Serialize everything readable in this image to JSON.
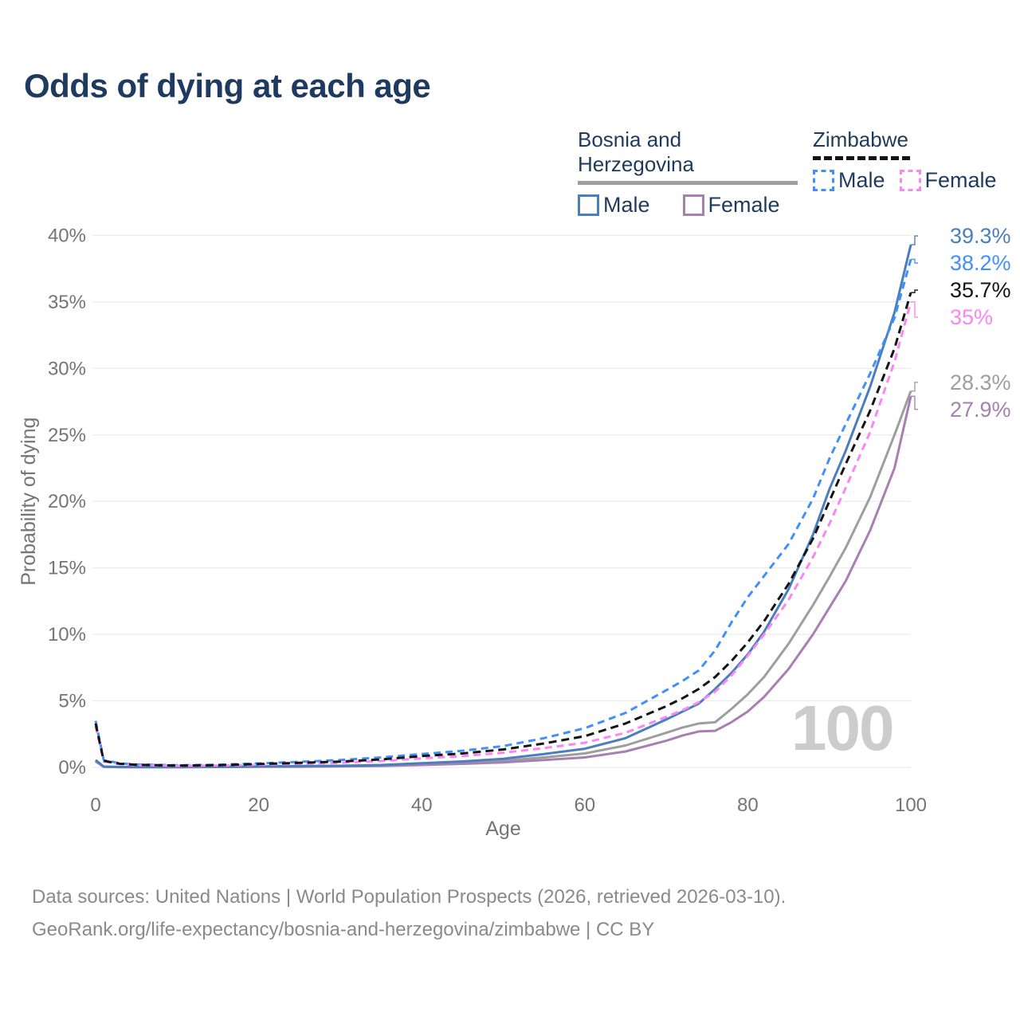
{
  "title": "Odds of dying at each age",
  "legend": {
    "groups": [
      {
        "country": "Bosnia and Herzegovina",
        "underline_style": "solid",
        "underline_color": "#9e9e9e",
        "items": [
          {
            "label": "Male",
            "color": "#4a7ebd",
            "dashed": false
          },
          {
            "label": "Female",
            "color": "#a77fb0",
            "dashed": false
          }
        ]
      },
      {
        "country": "Zimbabwe",
        "underline_style": "dashed",
        "underline_color": "#141414",
        "items": [
          {
            "label": "Male",
            "color": "#4190fa",
            "dashed": true
          },
          {
            "label": "Female",
            "color": "#fb86f2",
            "dashed": true
          }
        ]
      }
    ]
  },
  "watermark": "100",
  "footer": {
    "line1": "Data sources: United Nations | World Population Prospects (2026, retrieved 2026-03-10).",
    "line2": "GeoRank.org/life-expectancy/bosnia-and-herzegovina/zimbabwe | CC BY"
  },
  "chart_data": {
    "type": "line",
    "title": "Odds of dying at each age",
    "xlabel": "Age",
    "ylabel": "Probability of dying",
    "xlim": [
      0,
      100
    ],
    "ylim": [
      0,
      40
    ],
    "x_ticks": [
      0,
      20,
      40,
      60,
      80,
      100
    ],
    "y_ticks": [
      0,
      5,
      10,
      15,
      20,
      25,
      30,
      35,
      40
    ],
    "y_tick_suffix": "%",
    "grid": true,
    "legend_position": "top-right",
    "ages": [
      0,
      1,
      3,
      5,
      10,
      15,
      20,
      25,
      30,
      35,
      40,
      45,
      50,
      55,
      60,
      65,
      70,
      72,
      74,
      76,
      78,
      80,
      82,
      85,
      88,
      90,
      92,
      95,
      98,
      100
    ],
    "series": [
      {
        "name": "Bosnia and Herzegovina (both sexes)",
        "group": "Bosnia and Herzegovina",
        "sex": "both",
        "color": "#9e9e9e",
        "dashed": false,
        "flag": "ba",
        "end_label": "28.3%",
        "values": [
          0.5,
          0.05,
          0.03,
          0.02,
          0.02,
          0.04,
          0.06,
          0.08,
          0.1,
          0.14,
          0.25,
          0.35,
          0.5,
          0.75,
          1.05,
          1.65,
          2.6,
          3.0,
          3.3,
          3.4,
          4.4,
          5.5,
          6.8,
          9.3,
          12.2,
          14.3,
          16.5,
          20.3,
          25.0,
          28.3
        ]
      },
      {
        "name": "Bosnia and Herzegovina — Female",
        "group": "Bosnia and Herzegovina",
        "sex": "female",
        "color": "#a77fb0",
        "dashed": false,
        "flag": "ba",
        "end_label": "27.9%",
        "values": [
          0.45,
          0.04,
          0.02,
          0.02,
          0.02,
          0.03,
          0.04,
          0.05,
          0.07,
          0.1,
          0.18,
          0.27,
          0.38,
          0.55,
          0.75,
          1.2,
          2.0,
          2.4,
          2.7,
          2.75,
          3.4,
          4.2,
          5.3,
          7.4,
          10.0,
          12.0,
          14.0,
          17.8,
          22.5,
          27.9
        ]
      },
      {
        "name": "Bosnia and Herzegovina — Male",
        "group": "Bosnia and Herzegovina",
        "sex": "male",
        "color": "#4a7ebd",
        "dashed": false,
        "flag": "ba",
        "end_label": "39.3%",
        "values": [
          0.55,
          0.06,
          0.03,
          0.03,
          0.03,
          0.05,
          0.08,
          0.1,
          0.12,
          0.18,
          0.32,
          0.45,
          0.65,
          1.0,
          1.4,
          2.2,
          3.6,
          4.2,
          4.8,
          5.9,
          7.1,
          8.5,
          10.2,
          13.4,
          17.5,
          20.9,
          23.8,
          28.6,
          34.2,
          39.3
        ]
      },
      {
        "name": "Zimbabwe — Male",
        "group": "Zimbabwe",
        "sex": "male",
        "color": "#4190fa",
        "dashed": true,
        "flag": "zw",
        "end_label": "38.2%",
        "values": [
          3.5,
          0.55,
          0.3,
          0.22,
          0.16,
          0.2,
          0.3,
          0.42,
          0.55,
          0.75,
          1.0,
          1.25,
          1.6,
          2.2,
          2.95,
          4.1,
          5.8,
          6.5,
          7.3,
          8.8,
          10.9,
          12.8,
          14.4,
          16.8,
          20.2,
          23.2,
          25.8,
          29.6,
          33.8,
          38.2
        ]
      },
      {
        "name": "Zimbabwe — Female",
        "group": "Zimbabwe",
        "sex": "female",
        "color": "#fb86f2",
        "dashed": true,
        "flag": "zw",
        "end_label": "35%",
        "values": [
          3.1,
          0.45,
          0.24,
          0.17,
          0.12,
          0.14,
          0.2,
          0.27,
          0.35,
          0.48,
          0.68,
          0.85,
          1.1,
          1.45,
          1.85,
          2.6,
          3.8,
          4.3,
          4.9,
          5.7,
          6.9,
          8.4,
          10.0,
          12.6,
          15.8,
          18.3,
          21.0,
          25.2,
          30.5,
          35.0
        ]
      },
      {
        "name": "Zimbabwe (both sexes)",
        "group": "Zimbabwe",
        "sex": "both",
        "color": "#141414",
        "dashed": true,
        "flag": "zw",
        "end_label": "35.7%",
        "values": [
          3.3,
          0.5,
          0.27,
          0.2,
          0.14,
          0.17,
          0.25,
          0.34,
          0.44,
          0.6,
          0.85,
          1.05,
          1.35,
          1.8,
          2.35,
          3.3,
          4.6,
          5.2,
          5.9,
          6.8,
          8.0,
          9.4,
          11.0,
          13.8,
          17.2,
          20.0,
          22.8,
          26.8,
          31.5,
          35.7
        ]
      }
    ]
  }
}
